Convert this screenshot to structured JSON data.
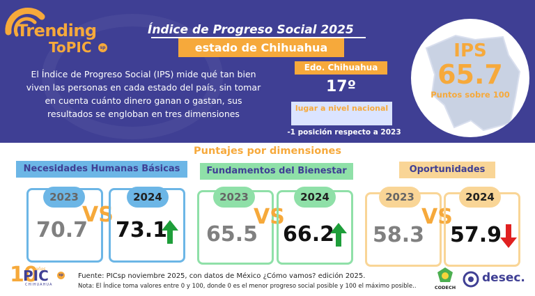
{
  "header": {
    "logo_line1": "Trending",
    "logo_line2": "ToPIC",
    "logo_badge": "sp",
    "title": "Índice de Progreso Social  2025",
    "state_label": "estado de Chihuahua",
    "description": "El Índice de Progreso Social (IPS) mide qué tan bien viven las personas en cada estado del país, sin tomar en cuenta cuánto dinero ganan o gastan, sus resultados se engloban en tres dimensiones",
    "edo_label": "Edo. Chihuahua",
    "rank": "17º",
    "rank_label": "lugar a nivel nacional",
    "rank_change": "-1 posición respecto a 2023",
    "ips_label": "IPS",
    "ips_score": "65.7",
    "ips_sub": "Puntos sobre 100"
  },
  "dimensions": {
    "title": "Puntajes por dimensiones",
    "vs_label": "VS",
    "items": [
      {
        "name": "Necesidades Humanas Básicas",
        "year_old": "2023",
        "val_old": "70.7",
        "year_new": "2024",
        "val_new": "73.1",
        "trend": "up",
        "color": "#6cb6e6"
      },
      {
        "name": "Fundamentos del Bienestar",
        "year_old": "2023",
        "val_old": "65.5",
        "year_new": "2024",
        "val_new": "66.2",
        "trend": "up",
        "color": "#8fe0a8"
      },
      {
        "name": "Oportunidades",
        "year_old": "2023",
        "val_old": "58.3",
        "year_new": "2024",
        "val_new": "57.9",
        "trend": "down",
        "color": "#f9d596"
      }
    ]
  },
  "footer": {
    "logo_num": "10",
    "logo_text": "PIC",
    "logo_badge": "sp",
    "logo_years": "años",
    "logo_place": "CHIHUAHUA",
    "source": "Fuente:  PICsp noviembre 2025, con datos de México ¿Cómo vamos? edición 2025.",
    "note": "Nota: El Índice toma valores entre 0 y 100, donde 0 es el menor progreso social posible y 100 el máximo posible..",
    "partner1": "CODECH",
    "partner2": "desec."
  },
  "colors": {
    "navy": "#3f3f94",
    "orange": "#f6a93b",
    "blue": "#6cb6e6",
    "green": "#8fe0a8",
    "light_orange": "#f9d596",
    "arrow_up": "#1e9e3a",
    "arrow_down": "#e02020"
  },
  "icons": [
    "trending-topic-logo",
    "chihuahua-map",
    "up-arrow-icon",
    "down-arrow-icon",
    "codech-logo",
    "desec-logo"
  ]
}
